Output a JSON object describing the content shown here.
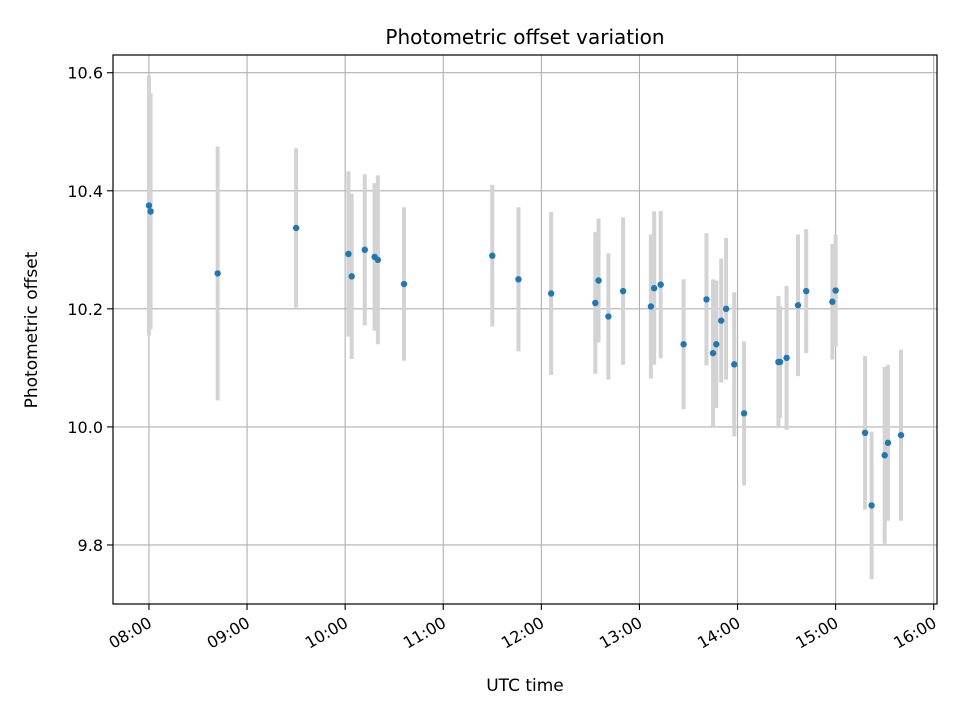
{
  "chart_data": {
    "type": "scatter",
    "title": "Photometric offset variation",
    "xlabel": "UTC time",
    "ylabel": "Photometric offset",
    "x_ticks": [
      "08:00",
      "09:00",
      "10:00",
      "11:00",
      "12:00",
      "13:00",
      "14:00",
      "15:00",
      "16:00"
    ],
    "y_ticks": [
      "9.8",
      "10.0",
      "10.2",
      "10.4",
      "10.6"
    ],
    "x_range": [
      "07:38",
      "16:02"
    ],
    "ylim": [
      9.7,
      10.63
    ],
    "grid": true,
    "legend": "none",
    "colors": {
      "point": "#1f77b4",
      "errorbar": "#d3d3d3",
      "grid": "#b0b0b0"
    },
    "series": [
      {
        "points": [
          {
            "x": "08:00",
            "y": 10.375,
            "err": 0.22
          },
          {
            "x": "08:01",
            "y": 10.365,
            "err": 0.2
          },
          {
            "x": "08:42",
            "y": 10.26,
            "err": 0.215
          },
          {
            "x": "09:30",
            "y": 10.337,
            "err": 0.135
          },
          {
            "x": "10:02",
            "y": 10.293,
            "err": 0.14
          },
          {
            "x": "10:04",
            "y": 10.255,
            "err": 0.14
          },
          {
            "x": "10:12",
            "y": 10.3,
            "err": 0.128
          },
          {
            "x": "10:18",
            "y": 10.288,
            "err": 0.125
          },
          {
            "x": "10:20",
            "y": 10.283,
            "err": 0.143
          },
          {
            "x": "10:36",
            "y": 10.242,
            "err": 0.13
          },
          {
            "x": "11:30",
            "y": 10.29,
            "err": 0.12
          },
          {
            "x": "11:46",
            "y": 10.25,
            "err": 0.122
          },
          {
            "x": "12:06",
            "y": 10.226,
            "err": 0.138
          },
          {
            "x": "12:33",
            "y": 10.21,
            "err": 0.12
          },
          {
            "x": "12:35",
            "y": 10.248,
            "err": 0.105
          },
          {
            "x": "12:41",
            "y": 10.187,
            "err": 0.107
          },
          {
            "x": "12:50",
            "y": 10.23,
            "err": 0.125
          },
          {
            "x": "13:07",
            "y": 10.204,
            "err": 0.122
          },
          {
            "x": "13:09",
            "y": 10.235,
            "err": 0.13
          },
          {
            "x": "13:13",
            "y": 10.241,
            "err": 0.125
          },
          {
            "x": "13:27",
            "y": 10.14,
            "err": 0.11
          },
          {
            "x": "13:41",
            "y": 10.216,
            "err": 0.112
          },
          {
            "x": "13:45",
            "y": 10.125,
            "err": 0.125
          },
          {
            "x": "13:47",
            "y": 10.14,
            "err": 0.108
          },
          {
            "x": "13:50",
            "y": 10.18,
            "err": 0.105
          },
          {
            "x": "13:53",
            "y": 10.2,
            "err": 0.12
          },
          {
            "x": "13:58",
            "y": 10.106,
            "err": 0.122
          },
          {
            "x": "14:04",
            "y": 10.023,
            "err": 0.122
          },
          {
            "x": "14:25",
            "y": 10.11,
            "err": 0.112
          },
          {
            "x": "14:26",
            "y": 10.11,
            "err": 0.095
          },
          {
            "x": "14:30",
            "y": 10.117,
            "err": 0.122
          },
          {
            "x": "14:37",
            "y": 10.206,
            "err": 0.12
          },
          {
            "x": "14:42",
            "y": 10.23,
            "err": 0.105
          },
          {
            "x": "14:58",
            "y": 10.212,
            "err": 0.098
          },
          {
            "x": "15:00",
            "y": 10.231,
            "err": 0.095
          },
          {
            "x": "15:18",
            "y": 9.99,
            "err": 0.13
          },
          {
            "x": "15:22",
            "y": 9.867,
            "err": 0.125
          },
          {
            "x": "15:30",
            "y": 9.952,
            "err": 0.15
          },
          {
            "x": "15:32",
            "y": 9.973,
            "err": 0.132
          },
          {
            "x": "15:40",
            "y": 9.986,
            "err": 0.145
          }
        ]
      }
    ]
  }
}
